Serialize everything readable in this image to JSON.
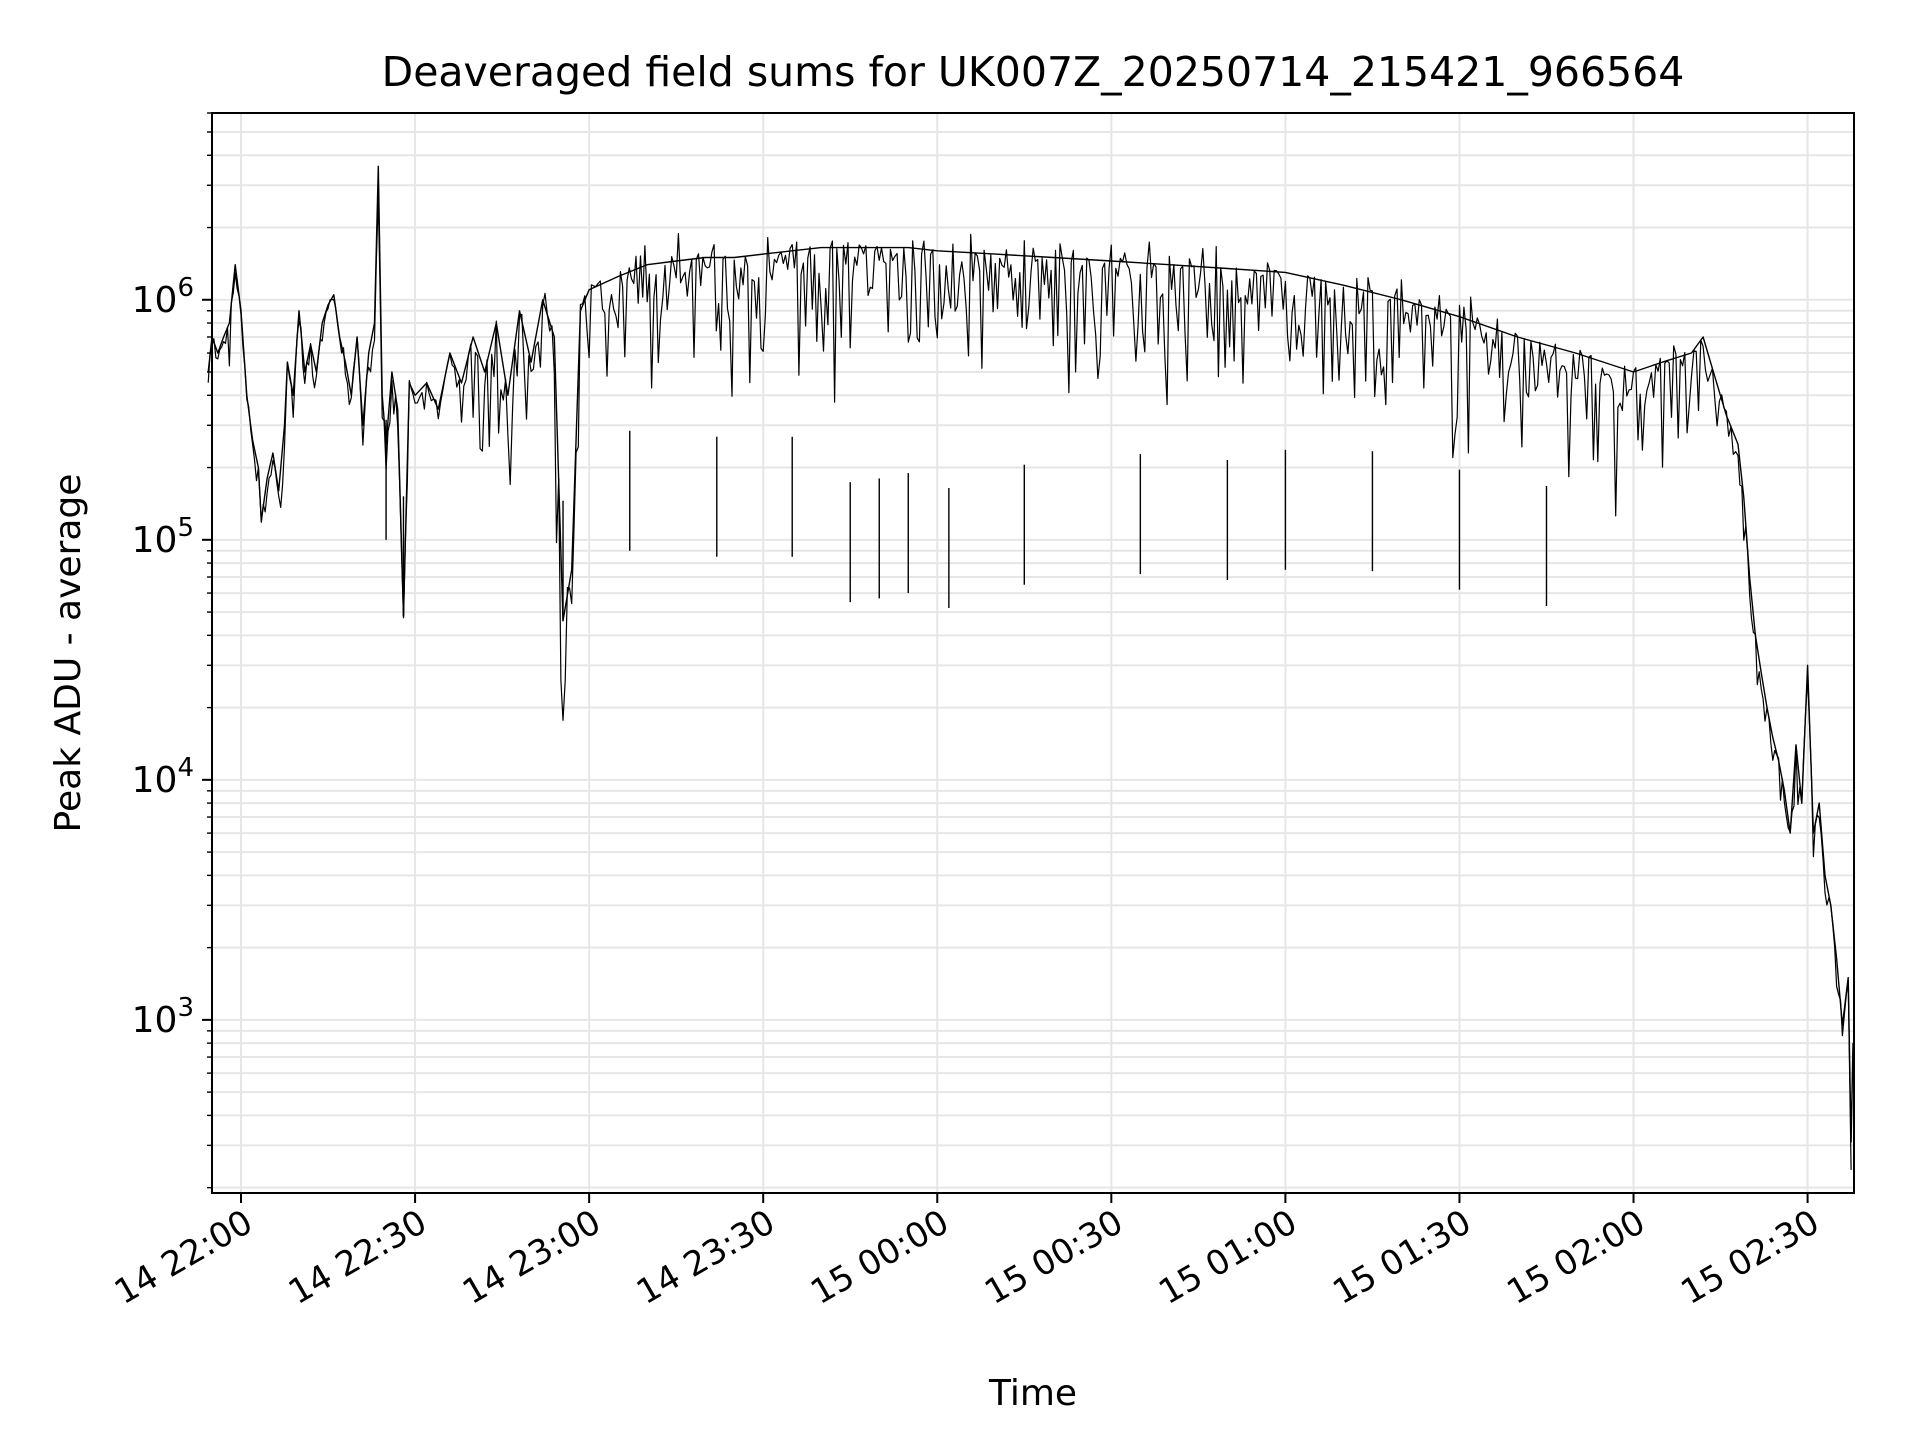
{
  "chart_data": {
    "type": "line",
    "title": "Deaveraged field sums for UK007Z_20250714_215421_966564",
    "xlabel": "Time",
    "ylabel": "Peak ADU - average",
    "yscale": "log",
    "ylim": [
      190,
      6000000
    ],
    "xlim": [
      "2025-07-14 21:55",
      "2025-07-15 02:38"
    ],
    "grid": true,
    "x_ticks": [
      {
        "label": "14 22:00",
        "time": "2025-07-14 22:00"
      },
      {
        "label": "14 22:30",
        "time": "2025-07-14 22:30"
      },
      {
        "label": "14 23:00",
        "time": "2025-07-14 23:00"
      },
      {
        "label": "14 23:30",
        "time": "2025-07-14 23:30"
      },
      {
        "label": "15 00:00",
        "time": "2025-07-15 00:00"
      },
      {
        "label": "15 00:30",
        "time": "2025-07-15 00:30"
      },
      {
        "label": "15 01:00",
        "time": "2025-07-15 01:00"
      },
      {
        "label": "15 01:30",
        "time": "2025-07-15 01:30"
      },
      {
        "label": "15 02:00",
        "time": "2025-07-15 02:00"
      },
      {
        "label": "15 02:30",
        "time": "2025-07-15 02:30"
      }
    ],
    "y_ticks": [
      {
        "mantissa": "10",
        "exponent": "3",
        "value": 1000
      },
      {
        "mantissa": "10",
        "exponent": "4",
        "value": 10000
      },
      {
        "mantissa": "10",
        "exponent": "5",
        "value": 100000
      },
      {
        "mantissa": "10",
        "exponent": "6",
        "value": 1000000
      }
    ],
    "series": [
      {
        "color": "#000000",
        "points": [
          [
            "2025-07-14 21:54:21",
            500000
          ],
          [
            "2025-07-14 21:55:00",
            700000
          ],
          [
            "2025-07-14 21:56:00",
            600000
          ],
          [
            "2025-07-14 21:57:00",
            700000
          ],
          [
            "2025-07-14 21:58:00",
            800000
          ],
          [
            "2025-07-14 21:59:00",
            1400000
          ],
          [
            "2025-07-14 22:00:00",
            900000
          ],
          [
            "2025-07-14 22:01:00",
            400000
          ],
          [
            "2025-07-14 22:02:00",
            260000
          ],
          [
            "2025-07-14 22:03:00",
            200000
          ],
          [
            "2025-07-14 22:03:30",
            120000
          ],
          [
            "2025-07-14 22:04:30",
            180000
          ],
          [
            "2025-07-14 22:05:30",
            230000
          ],
          [
            "2025-07-14 22:06:30",
            160000
          ],
          [
            "2025-07-14 22:07:30",
            300000
          ],
          [
            "2025-07-14 22:08:00",
            550000
          ],
          [
            "2025-07-14 22:09:00",
            400000
          ],
          [
            "2025-07-14 22:10:00",
            900000
          ],
          [
            "2025-07-14 22:11:00",
            500000
          ],
          [
            "2025-07-14 22:12:00",
            650000
          ],
          [
            "2025-07-14 22:13:00",
            500000
          ],
          [
            "2025-07-14 22:14:00",
            800000
          ],
          [
            "2025-07-14 22:15:00",
            950000
          ],
          [
            "2025-07-14 22:16:00",
            1050000
          ],
          [
            "2025-07-14 22:17:00",
            700000
          ],
          [
            "2025-07-14 22:18:00",
            550000
          ],
          [
            "2025-07-14 22:19:00",
            400000
          ],
          [
            "2025-07-14 22:20:00",
            700000
          ],
          [
            "2025-07-14 22:21:00",
            300000
          ],
          [
            "2025-07-14 22:22:00",
            600000
          ],
          [
            "2025-07-14 22:23:00",
            800000
          ],
          [
            "2025-07-14 22:23:40",
            3600000
          ],
          [
            "2025-07-14 22:24:20",
            400000
          ],
          [
            "2025-07-14 22:25:00",
            250000
          ],
          [
            "2025-07-14 22:26:00",
            500000
          ],
          [
            "2025-07-14 22:27:00",
            350000
          ],
          [
            "2025-07-14 22:28:00",
            48000
          ],
          [
            "2025-07-14 22:29:00",
            450000
          ],
          [
            "2025-07-14 22:30:00",
            400000
          ],
          [
            "2025-07-14 22:32:00",
            450000
          ],
          [
            "2025-07-14 22:34:00",
            350000
          ],
          [
            "2025-07-14 22:36:00",
            600000
          ],
          [
            "2025-07-14 22:38:00",
            450000
          ],
          [
            "2025-07-14 22:40:00",
            700000
          ],
          [
            "2025-07-14 22:42:00",
            500000
          ],
          [
            "2025-07-14 22:44:00",
            800000
          ],
          [
            "2025-07-14 22:46:00",
            400000
          ],
          [
            "2025-07-14 22:48:00",
            900000
          ],
          [
            "2025-07-14 22:50:00",
            550000
          ],
          [
            "2025-07-14 22:52:00",
            1000000
          ],
          [
            "2025-07-14 22:54:00",
            700000
          ],
          [
            "2025-07-14 22:55:30",
            46000
          ],
          [
            "2025-07-14 22:57:00",
            75000
          ],
          [
            "2025-07-14 22:58:30",
            900000
          ],
          [
            "2025-07-14 23:00:00",
            1100000
          ],
          [
            "2025-07-14 23:05:00",
            1250000
          ],
          [
            "2025-07-14 23:10:00",
            1400000
          ],
          [
            "2025-07-14 23:15:00",
            1450000
          ],
          [
            "2025-07-14 23:20:00",
            1500000
          ],
          [
            "2025-07-14 23:25:00",
            1500000
          ],
          [
            "2025-07-14 23:30:00",
            1550000
          ],
          [
            "2025-07-14 23:35:00",
            1600000
          ],
          [
            "2025-07-14 23:40:00",
            1650000
          ],
          [
            "2025-07-14 23:45:00",
            1650000
          ],
          [
            "2025-07-14 23:50:00",
            1650000
          ],
          [
            "2025-07-14 23:55:00",
            1650000
          ],
          [
            "2025-07-15 00:00:00",
            1600000
          ],
          [
            "2025-07-15 00:10:00",
            1550000
          ],
          [
            "2025-07-15 00:20:00",
            1500000
          ],
          [
            "2025-07-15 00:30:00",
            1450000
          ],
          [
            "2025-07-15 00:40:00",
            1400000
          ],
          [
            "2025-07-15 00:50:00",
            1350000
          ],
          [
            "2025-07-15 01:00:00",
            1300000
          ],
          [
            "2025-07-15 01:10:00",
            1150000
          ],
          [
            "2025-07-15 01:20:00",
            1000000
          ],
          [
            "2025-07-15 01:30:00",
            850000
          ],
          [
            "2025-07-15 01:40:00",
            700000
          ],
          [
            "2025-07-15 01:50:00",
            600000
          ],
          [
            "2025-07-15 02:00:00",
            500000
          ],
          [
            "2025-07-15 02:05:00",
            550000
          ],
          [
            "2025-07-15 02:10:00",
            600000
          ],
          [
            "2025-07-15 02:12:00",
            700000
          ],
          [
            "2025-07-15 02:14:00",
            480000
          ],
          [
            "2025-07-15 02:16:00",
            330000
          ],
          [
            "2025-07-15 02:18:00",
            250000
          ],
          [
            "2025-07-15 02:19:00",
            150000
          ],
          [
            "2025-07-15 02:20:00",
            70000
          ],
          [
            "2025-07-15 02:21:00",
            40000
          ],
          [
            "2025-07-15 02:22:00",
            28000
          ],
          [
            "2025-07-15 02:23:00",
            20000
          ],
          [
            "2025-07-15 02:24:00",
            15000
          ],
          [
            "2025-07-15 02:25:00",
            12000
          ],
          [
            "2025-07-15 02:26:00",
            9000
          ],
          [
            "2025-07-15 02:27:00",
            6000
          ],
          [
            "2025-07-15 02:28:00",
            14000
          ],
          [
            "2025-07-15 02:29:00",
            8000
          ],
          [
            "2025-07-15 02:30:00",
            30000
          ],
          [
            "2025-07-15 02:31:00",
            6000
          ],
          [
            "2025-07-15 02:32:00",
            8000
          ],
          [
            "2025-07-15 02:33:00",
            4000
          ],
          [
            "2025-07-15 02:34:00",
            3000
          ],
          [
            "2025-07-15 02:35:00",
            1800
          ],
          [
            "2025-07-15 02:36:00",
            950
          ],
          [
            "2025-07-15 02:37:00",
            1500
          ],
          [
            "2025-07-15 02:37:30",
            310
          ],
          [
            "2025-07-15 02:37:50",
            800
          ]
        ],
        "dips": [
          [
            "2025-07-14 22:25:00",
            100000
          ],
          [
            "2025-07-14 22:28:00",
            48000
          ],
          [
            "2025-07-14 22:55:30",
            46000
          ],
          [
            "2025-07-14 23:07:00",
            90000
          ],
          [
            "2025-07-14 23:22:00",
            85000
          ],
          [
            "2025-07-14 23:35:00",
            85000
          ],
          [
            "2025-07-14 23:45:00",
            55000
          ],
          [
            "2025-07-14 23:50:00",
            57000
          ],
          [
            "2025-07-14 23:55:00",
            60000
          ],
          [
            "2025-07-15 00:02:00",
            52000
          ],
          [
            "2025-07-15 00:15:00",
            65000
          ],
          [
            "2025-07-15 00:35:00",
            72000
          ],
          [
            "2025-07-15 00:50:00",
            68000
          ],
          [
            "2025-07-15 01:00:00",
            75000
          ],
          [
            "2025-07-15 01:15:00",
            74000
          ],
          [
            "2025-07-15 01:30:00",
            62000
          ],
          [
            "2025-07-15 01:45:00",
            53000
          ]
        ]
      }
    ]
  }
}
